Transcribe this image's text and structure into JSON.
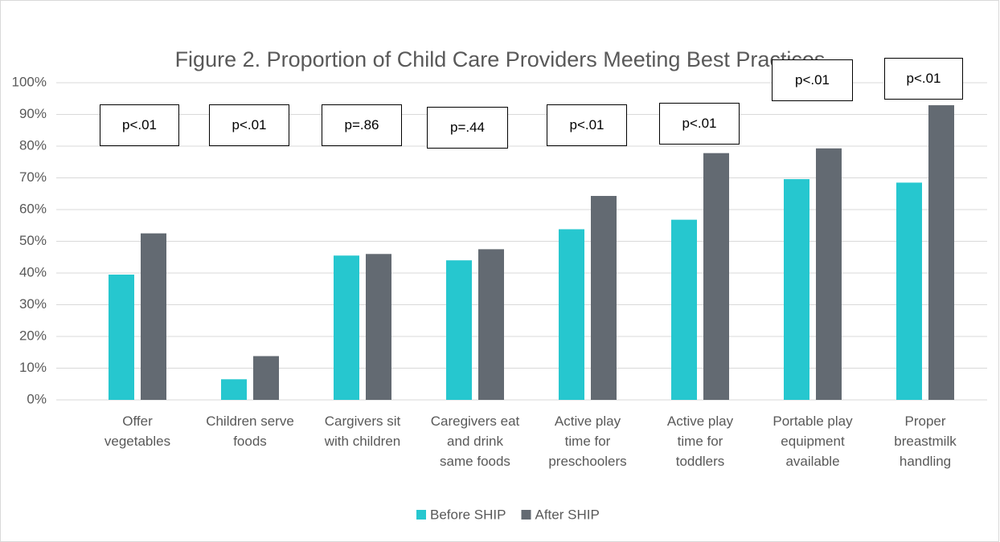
{
  "chart_data": {
    "type": "bar",
    "title": "Figure 2. Proportion of Child Care Providers Meeting Best Practices",
    "categories": [
      "Offer\nvegetables",
      "Children serve\nfoods",
      "Cargivers sit\nwith children",
      "Caregivers eat\nand drink\nsame foods",
      "Active play\ntime for\npreschoolers",
      "Active play\ntime for\ntoddlers",
      "Portable play\nequipment\navailable",
      "Proper\nbreastmilk\nhandling"
    ],
    "series": [
      {
        "name": "Before SHIP",
        "color": "#26c7cf",
        "values": [
          39.5,
          6.5,
          45.5,
          44,
          53.8,
          56.8,
          69.6,
          68.5
        ]
      },
      {
        "name": "After SHIP",
        "color": "#636a72",
        "values": [
          52.5,
          13.8,
          46,
          47.5,
          64.3,
          77.8,
          79.3,
          92.9
        ]
      }
    ],
    "annotations": [
      "p<.01",
      "p<.01",
      "p=.86",
      "p=.44",
      "p<.01",
      "p<.01",
      "p<.01",
      "p<.01"
    ],
    "ylim": [
      0,
      100
    ],
    "yticks": [
      {
        "value": 0,
        "label": "0%"
      },
      {
        "value": 10,
        "label": "10%"
      },
      {
        "value": 20,
        "label": "20%"
      },
      {
        "value": 30,
        "label": "30%"
      },
      {
        "value": 40,
        "label": "40%"
      },
      {
        "value": 50,
        "label": "50%"
      },
      {
        "value": 60,
        "label": "60%"
      },
      {
        "value": 70,
        "label": "70%"
      },
      {
        "value": 80,
        "label": "80%"
      },
      {
        "value": 90,
        "label": "90%"
      },
      {
        "value": 100,
        "label": "100%"
      }
    ],
    "grid": true,
    "legend": "bottom"
  }
}
